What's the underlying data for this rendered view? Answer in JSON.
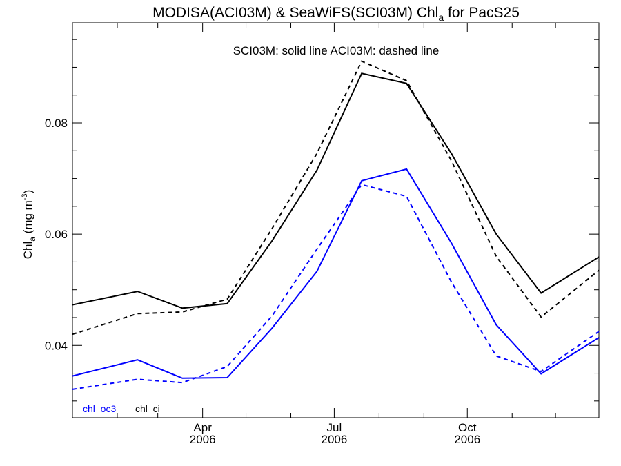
{
  "chart_data": {
    "type": "line",
    "title": "MODISA(ACI03M) & SeaWiFS(SCI03M)  Chl",
    "title_subscript": "a",
    "title_suffix": " for PacS25",
    "ylabel": "Chl",
    "ylabel_subscript": "a",
    "ylabel_units": " (mg m",
    "ylabel_superscript": "-3",
    "ylabel_close": ")",
    "annotation": "SCI03M: solid line   ACI03M: dashed line",
    "xlim": [
      "2006-01-01",
      "2006-12-31"
    ],
    "ylim": [
      0.027,
      0.098
    ],
    "yticks": [
      "0.04",
      "0.06",
      "0.08"
    ],
    "yminor_step": 0.005,
    "xtick_labels": [
      {
        "month": "Apr",
        "year": "2006",
        "date": "2006-04-01"
      },
      {
        "month": "Jul",
        "year": "2006",
        "date": "2006-07-01"
      },
      {
        "month": "Oct",
        "year": "2006",
        "date": "2006-10-01"
      }
    ],
    "x": [
      "2006-01-01",
      "2006-02-15",
      "2006-03-18",
      "2006-04-18",
      "2006-05-19",
      "2006-06-19",
      "2006-07-20",
      "2006-08-20",
      "2006-09-20",
      "2006-10-21",
      "2006-11-21",
      "2006-12-31"
    ],
    "legend": [
      {
        "label": "chl_oc3",
        "color": "#0000ff"
      },
      {
        "label": "chl_ci",
        "color": "#000000"
      }
    ],
    "series": [
      {
        "label": "chl_ci",
        "style": "solid",
        "color": "#000000",
        "values": [
          0.0473,
          0.0497,
          0.0467,
          0.0475,
          0.0588,
          0.0715,
          0.0889,
          0.0871,
          0.0745,
          0.06,
          0.0494,
          0.0559
        ]
      },
      {
        "label": "chl_ci",
        "style": "dashed",
        "color": "#000000",
        "values": [
          0.042,
          0.0457,
          0.046,
          0.0483,
          0.061,
          0.0745,
          0.0911,
          0.0876,
          0.0732,
          0.056,
          0.0451,
          0.0535
        ]
      },
      {
        "label": "chl_oc3",
        "style": "solid",
        "color": "#0000ff",
        "values": [
          0.0345,
          0.0374,
          0.0341,
          0.0342,
          0.0431,
          0.0533,
          0.0696,
          0.0717,
          0.0584,
          0.0437,
          0.0349,
          0.0414
        ]
      },
      {
        "label": "chl_oc3",
        "style": "dashed",
        "color": "#0000ff",
        "values": [
          0.0321,
          0.0339,
          0.0333,
          0.0362,
          0.0453,
          0.0573,
          0.0689,
          0.0668,
          0.0514,
          0.0381,
          0.0353,
          0.0425
        ]
      }
    ]
  }
}
